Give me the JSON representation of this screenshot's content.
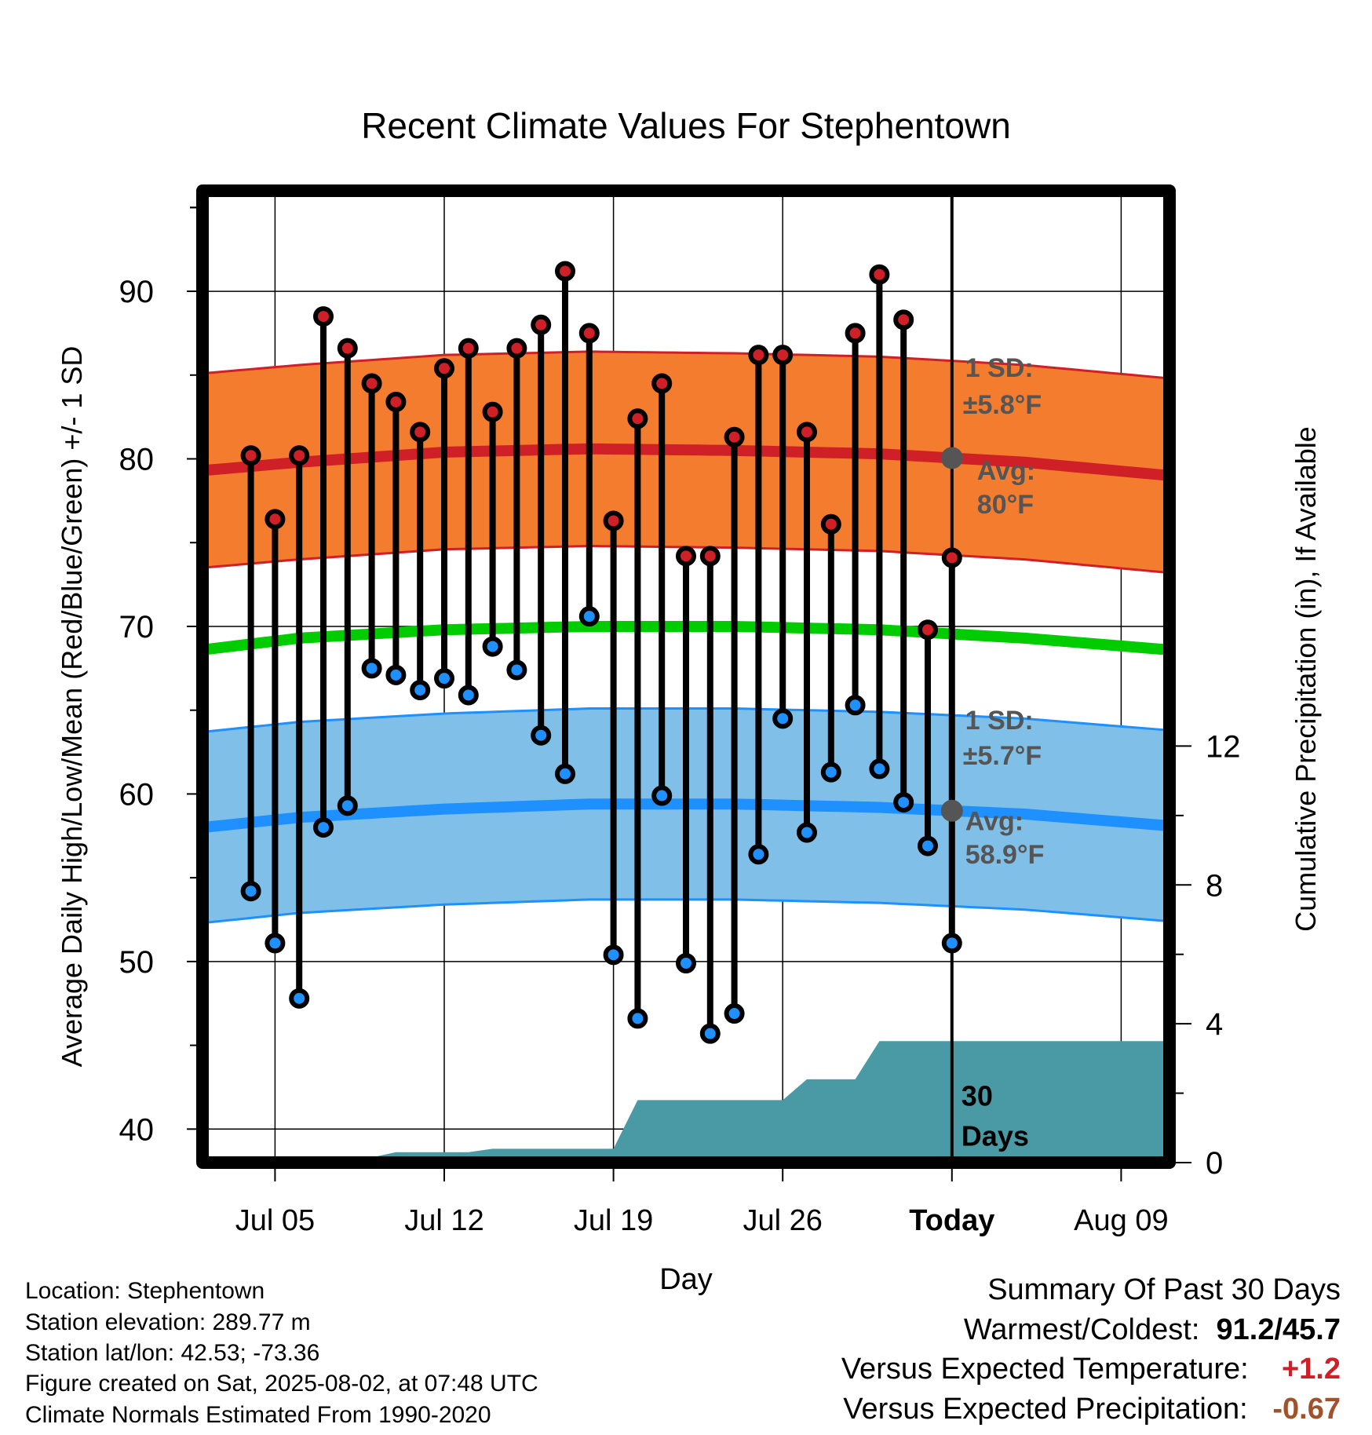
{
  "chart_data": {
    "type": "line",
    "title": "Recent Climate Values For Stephentown",
    "xlabel": "Day",
    "ylabel": "Average Daily High/Low/Mean (Red/Blue/Green) +/- 1 SD",
    "y2label": "Cumulative Precipitation (in), If Available",
    "ylim": [
      38,
      96
    ],
    "y2lim": [
      0,
      28
    ],
    "yticks": [
      "40",
      "50",
      "60",
      "70",
      "80",
      "90"
    ],
    "y2ticks": [
      "0",
      "4",
      "8",
      "12"
    ],
    "y2tick_values": [
      0,
      4,
      8,
      12
    ],
    "xticks": [
      "Jul 05",
      "Jul 12",
      "Jul 19",
      "Jul 26",
      "Today",
      "Aug 09"
    ],
    "xtick_days": [
      2,
      9,
      16,
      23,
      30,
      37
    ],
    "x_range_days": [
      -1,
      39
    ],
    "grid": true,
    "days": [
      1,
      2,
      3,
      4,
      5,
      6,
      7,
      8,
      9,
      10,
      11,
      12,
      13,
      14,
      15,
      16,
      17,
      18,
      19,
      20,
      21,
      22,
      23,
      24,
      25,
      26,
      27,
      28,
      29,
      30
    ],
    "daily_high": [
      80.2,
      76.4,
      80.2,
      88.5,
      86.6,
      84.5,
      83.4,
      81.6,
      85.4,
      86.6,
      82.8,
      86.6,
      88.0,
      91.2,
      87.5,
      76.3,
      82.4,
      84.5,
      74.2,
      74.2,
      81.3,
      86.2,
      86.2,
      81.6,
      76.1,
      87.5,
      91.0,
      88.3,
      69.8,
      74.1
    ],
    "daily_low": [
      54.2,
      51.1,
      47.8,
      58.0,
      59.3,
      67.5,
      67.1,
      66.2,
      66.9,
      65.9,
      68.8,
      67.4,
      63.5,
      61.2,
      70.6,
      50.4,
      46.6,
      59.9,
      49.9,
      45.7,
      46.9,
      56.4,
      64.5,
      57.7,
      61.3,
      65.3,
      61.5,
      59.5,
      56.9,
      51.1
    ],
    "normal_high": {
      "days": [
        -1,
        3,
        9,
        15,
        21,
        27,
        33,
        39
      ],
      "mean": [
        79.3,
        79.8,
        80.4,
        80.6,
        80.5,
        80.3,
        79.8,
        79.0
      ],
      "sd": 5.8
    },
    "normal_low": {
      "days": [
        -1,
        3,
        9,
        15,
        21,
        27,
        33,
        39
      ],
      "mean": [
        58.0,
        58.6,
        59.1,
        59.4,
        59.4,
        59.2,
        58.8,
        58.1
      ],
      "sd": 5.7
    },
    "normal_mean": {
      "days": [
        -1,
        3,
        9,
        15,
        21,
        27,
        33,
        39
      ],
      "values": [
        68.6,
        69.3,
        69.8,
        70.0,
        70.0,
        69.8,
        69.3,
        68.6
      ]
    },
    "precip_cumulative": {
      "days": [
        -1,
        5,
        7,
        9,
        10,
        11,
        16,
        17,
        20,
        21,
        22,
        23,
        24,
        26,
        27,
        29,
        30,
        39
      ],
      "values": [
        0,
        0,
        0.3,
        0.3,
        0.3,
        0.4,
        0.4,
        1.8,
        1.8,
        1.8,
        1.8,
        1.8,
        2.4,
        2.4,
        3.5,
        3.5,
        3.5,
        3.5
      ]
    },
    "annotations": {
      "high_sd": "1 SD:",
      "high_sd_value": "±5.8°F",
      "high_avg": "Avg:",
      "high_avg_value": "80°F",
      "low_sd": "1 SD:",
      "low_sd_value": "±5.7°F",
      "low_avg": "Avg:",
      "low_avg_value": "58.9°F",
      "days_line1": "30",
      "days_line2": "Days"
    },
    "colors": {
      "high_band": "#f47c2e",
      "high_line": "#d02027",
      "low_band": "#80c0e8",
      "low_line": "#1e90ff",
      "mean_line": "#00cc00",
      "precip": "#4a9aa5",
      "high_marker": "#d02027",
      "low_marker": "#1e90ff",
      "annotation": "#555555"
    }
  },
  "info": {
    "location": "Location: Stephentown",
    "elevation": "Station elevation: 289.77 m",
    "latlon": "Station lat/lon: 42.53; -73.36",
    "created": "Figure created on Sat, 2025-08-02, at 07:48 UTC",
    "normals": "Climate Normals Estimated From 1990-2020"
  },
  "summary": {
    "title": "Summary Of Past 30 Days",
    "warm_cold_label": "Warmest/Coldest:",
    "warm_cold_value": "91.2/45.7",
    "temp_label": "Versus Expected Temperature:",
    "temp_value": "+1.2",
    "temp_color": "#d02027",
    "precip_label": "Versus Expected Precipitation:",
    "precip_value": "-0.67",
    "precip_color": "#a0522d"
  }
}
